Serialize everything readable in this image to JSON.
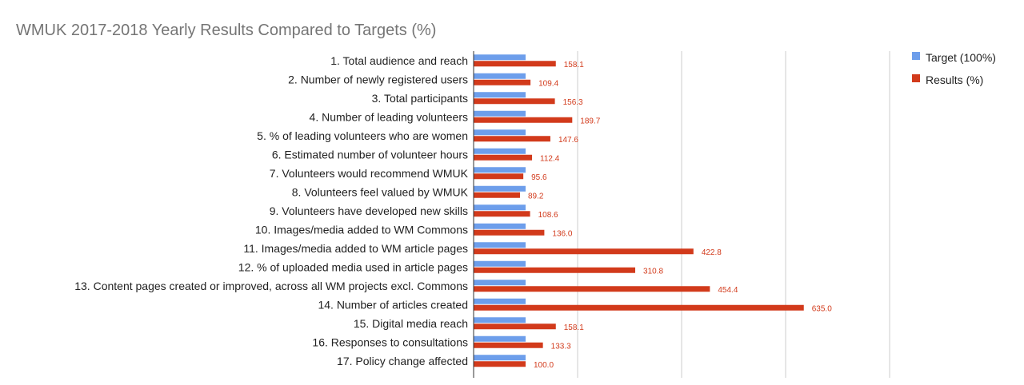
{
  "chart_data": {
    "type": "bar",
    "orientation": "horizontal",
    "title": "WMUK 2017-2018 Yearly Results Compared to Targets (%)",
    "categories": [
      "1. Total audience and reach",
      "2. Number of newly registered users",
      "3. Total participants",
      "4. Number of leading volunteers",
      "5. % of leading volunteers who are women",
      "6. Estimated number of volunteer hours",
      "7. Volunteers would recommend WMUK",
      "8. Volunteers feel valued by WMUK",
      "9. Volunteers have developed new skills",
      "10. Images/media added to WM Commons",
      "11. Images/media added to WM article pages",
      "12. % of uploaded media used in article pages",
      "13. Content pages created or improved, across all WM projects excl. Commons",
      "14. Number of articles created",
      "15. Digital media reach",
      "16. Responses to consultations",
      "17. Policy change affected"
    ],
    "series": [
      {
        "name": "Target (100%)",
        "color": "#6d9eeb",
        "values": [
          100,
          100,
          100,
          100,
          100,
          100,
          100,
          100,
          100,
          100,
          100,
          100,
          100,
          100,
          100,
          100,
          100
        ]
      },
      {
        "name": "Results (%)",
        "color": "#d23a1b",
        "values": [
          158.1,
          109.4,
          156.3,
          189.7,
          147.6,
          112.4,
          95.6,
          89.2,
          108.6,
          136.0,
          422.8,
          310.8,
          454.4,
          635.0,
          158.1,
          133.3,
          100.0
        ],
        "labels": [
          "158.1",
          "109.4",
          "156.3",
          "189.7",
          "147.6",
          "112.4",
          "95.6",
          "89.2",
          "108.6",
          "136.0",
          "422.8",
          "310.8",
          "454.4",
          "635.0",
          "158.1",
          "133.3",
          "100.0"
        ]
      }
    ],
    "xlim": [
      0,
      800
    ],
    "gridlines": [
      200,
      400,
      600,
      800
    ],
    "grid": true,
    "legend_position": "right"
  }
}
